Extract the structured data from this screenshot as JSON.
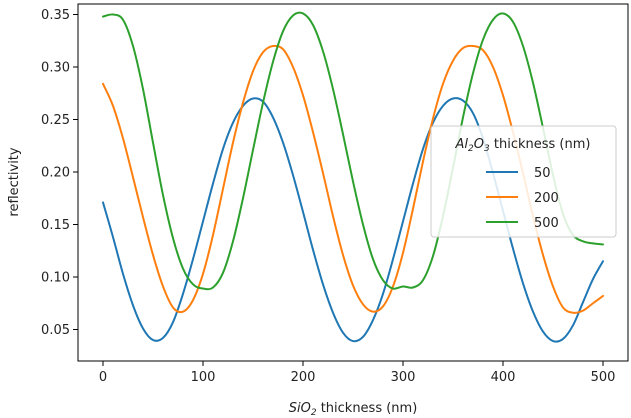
{
  "chart_data": {
    "type": "line",
    "xlabel": "SiO₂ thickness (nm)",
    "ylabel": "reflectivity",
    "xlim": [
      -25,
      525
    ],
    "ylim": [
      0.02,
      0.36
    ],
    "xticks": [
      0,
      100,
      200,
      300,
      400,
      500
    ],
    "xtick_labels": [
      "0",
      "100",
      "200",
      "300",
      "400",
      "500"
    ],
    "yticks": [
      0.05,
      0.1,
      0.15,
      0.2,
      0.25,
      0.3,
      0.35
    ],
    "ytick_labels": [
      "0.05",
      "0.10",
      "0.15",
      "0.20",
      "0.25",
      "0.30",
      "0.35"
    ],
    "grid": false,
    "legend": {
      "title": "Al₂O₃ thickness (nm)",
      "placement": "center-right"
    },
    "series": [
      {
        "name": "50",
        "color": "#1f77b4",
        "x": [
          0,
          10,
          20,
          30,
          40,
          50,
          60,
          70,
          80,
          90,
          100,
          110,
          120,
          130,
          140,
          150,
          160,
          170,
          180,
          190,
          200,
          210,
          220,
          230,
          240,
          250,
          260,
          270,
          280,
          290,
          300,
          310,
          320,
          330,
          340,
          350,
          360,
          370,
          380,
          390,
          400,
          410,
          420,
          430,
          440,
          450,
          460,
          470,
          480,
          490,
          500
        ],
        "y": [
          0.171,
          0.138,
          0.103,
          0.073,
          0.051,
          0.04,
          0.042,
          0.057,
          0.084,
          0.117,
          0.153,
          0.189,
          0.222,
          0.247,
          0.263,
          0.27,
          0.267,
          0.252,
          0.228,
          0.197,
          0.162,
          0.126,
          0.093,
          0.066,
          0.047,
          0.039,
          0.043,
          0.059,
          0.084,
          0.117,
          0.153,
          0.189,
          0.222,
          0.247,
          0.263,
          0.27,
          0.268,
          0.256,
          0.232,
          0.199,
          0.163,
          0.127,
          0.094,
          0.067,
          0.048,
          0.039,
          0.041,
          0.054,
          0.076,
          0.098,
          0.115
        ]
      },
      {
        "name": "200",
        "color": "#ff7f0e",
        "x": [
          0,
          10,
          20,
          30,
          40,
          50,
          60,
          70,
          80,
          90,
          100,
          110,
          120,
          130,
          140,
          150,
          160,
          170,
          180,
          190,
          200,
          210,
          220,
          230,
          240,
          250,
          260,
          270,
          280,
          290,
          300,
          310,
          320,
          330,
          340,
          350,
          360,
          370,
          380,
          390,
          400,
          410,
          420,
          430,
          440,
          450,
          460,
          470,
          480,
          490,
          500
        ],
        "y": [
          0.284,
          0.263,
          0.232,
          0.195,
          0.157,
          0.121,
          0.091,
          0.071,
          0.067,
          0.078,
          0.103,
          0.14,
          0.184,
          0.228,
          0.266,
          0.296,
          0.314,
          0.32,
          0.317,
          0.3,
          0.273,
          0.238,
          0.199,
          0.158,
          0.121,
          0.092,
          0.074,
          0.067,
          0.072,
          0.091,
          0.123,
          0.165,
          0.21,
          0.251,
          0.284,
          0.306,
          0.318,
          0.32,
          0.316,
          0.3,
          0.273,
          0.238,
          0.199,
          0.158,
          0.121,
          0.091,
          0.071,
          0.066,
          0.068,
          0.075,
          0.082
        ]
      },
      {
        "name": "500",
        "color": "#2ca02c",
        "x": [
          0,
          10,
          20,
          30,
          40,
          50,
          60,
          70,
          80,
          90,
          100,
          110,
          120,
          130,
          140,
          150,
          160,
          170,
          180,
          190,
          200,
          210,
          220,
          230,
          240,
          250,
          260,
          270,
          280,
          290,
          300,
          310,
          320,
          330,
          340,
          350,
          360,
          370,
          380,
          390,
          400,
          410,
          420,
          430,
          440,
          450,
          460,
          470,
          480,
          490,
          500
        ],
        "y": [
          0.348,
          0.35,
          0.345,
          0.32,
          0.279,
          0.228,
          0.178,
          0.137,
          0.108,
          0.093,
          0.089,
          0.09,
          0.104,
          0.134,
          0.175,
          0.221,
          0.266,
          0.305,
          0.334,
          0.349,
          0.351,
          0.34,
          0.315,
          0.279,
          0.236,
          0.191,
          0.15,
          0.117,
          0.097,
          0.089,
          0.091,
          0.09,
          0.097,
          0.12,
          0.158,
          0.204,
          0.252,
          0.294,
          0.326,
          0.345,
          0.351,
          0.343,
          0.32,
          0.285,
          0.242,
          0.197,
          0.16,
          0.14,
          0.134,
          0.132,
          0.131
        ]
      }
    ]
  }
}
